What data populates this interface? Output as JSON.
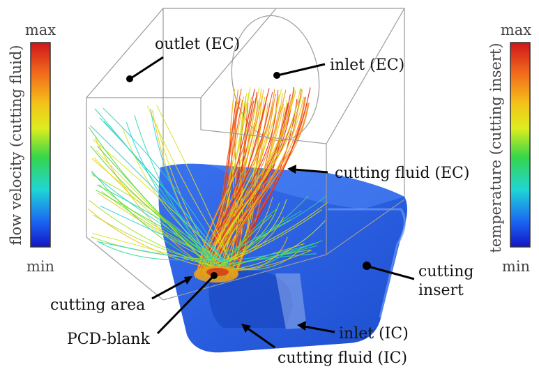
{
  "left_scale": {
    "label": "flow velocity (cutting fluid)",
    "max": "max",
    "min": "min"
  },
  "right_scale": {
    "label": "temperature (cutting insert)",
    "max": "max",
    "min": "min"
  },
  "colors": {
    "insert": "#2a5fe0",
    "gradient": [
      "#d0151b",
      "#f26a1b",
      "#f5c31a",
      "#ddee1e",
      "#35d64a",
      "#1fd6d6",
      "#1b6af2",
      "#1414c8"
    ]
  },
  "labels": {
    "outlet_ec": "outlet (EC)",
    "inlet_ec": "inlet (EC)",
    "cutting_fluid_ec": "cutting fluid (EC)",
    "cutting_insert_1": "cutting",
    "cutting_insert_2": "insert",
    "cutting_area": "cutting area",
    "pcd_blank": "PCD-blank",
    "inlet_ic": "inlet (IC)",
    "cutting_fluid_ic": "cutting fluid (IC)"
  }
}
